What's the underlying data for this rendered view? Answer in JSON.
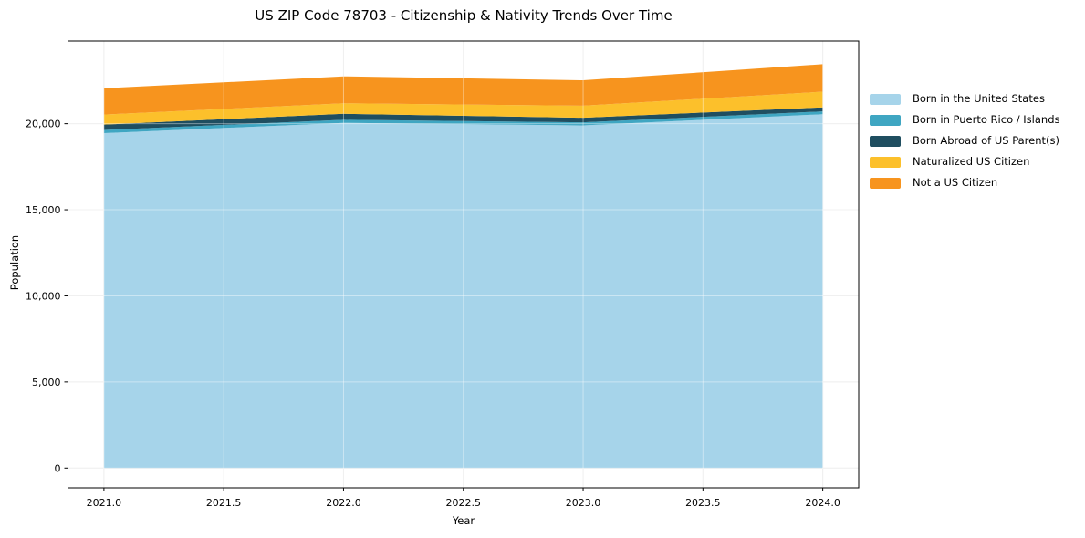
{
  "chart_data": {
    "type": "area",
    "stacked": true,
    "title": "US ZIP Code 78703 - Citizenship & Nativity Trends Over Time",
    "xlabel": "Year",
    "ylabel": "Population",
    "x": [
      2021,
      2022,
      2023,
      2024
    ],
    "xticks": [
      2021.0,
      2021.5,
      2022.0,
      2022.5,
      2023.0,
      2023.5,
      2024.0
    ],
    "yticks": [
      0,
      5000,
      10000,
      15000,
      20000
    ],
    "xlim": [
      2020.85,
      2024.15
    ],
    "ylim": [
      -1150,
      24800
    ],
    "grid": true,
    "legend_position": "right-outside",
    "background_color": "#ffffff",
    "spine_color": "#000000",
    "grid_color": "#e6e6e6",
    "series": [
      {
        "name": "Born in the United States",
        "color": "#a6d4ea",
        "values": [
          19450,
          20050,
          19900,
          20550
        ]
      },
      {
        "name": "Born in Puerto Rico / Islands",
        "color": "#3fa6c2",
        "values": [
          185,
          175,
          180,
          165
        ]
      },
      {
        "name": "Born Abroad of US Parent(s)",
        "color": "#1f4e60",
        "values": [
          315,
          350,
          265,
          235
        ]
      },
      {
        "name": "Naturalized US Citizen",
        "color": "#fcc02b",
        "values": [
          580,
          610,
          700,
          910
        ]
      },
      {
        "name": "Not a US Citizen",
        "color": "#f7941e",
        "values": [
          1525,
          1565,
          1475,
          1595
        ]
      }
    ],
    "totals": [
      22055,
      22750,
      22520,
      23455
    ]
  }
}
